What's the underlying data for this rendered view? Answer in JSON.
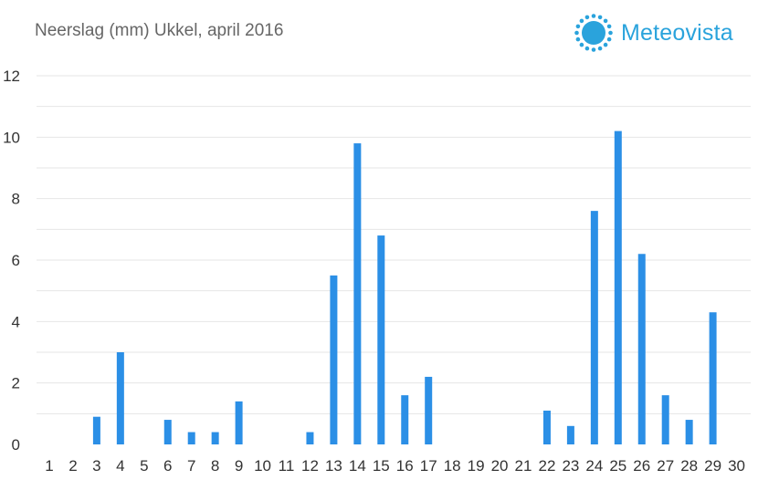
{
  "chart_data": {
    "type": "bar",
    "title": "Neerslag (mm) Ukkel, april 2016",
    "xlabel": "",
    "ylabel": "",
    "ylim": [
      0,
      12
    ],
    "yticks": [
      0,
      2,
      4,
      6,
      8,
      10,
      12
    ],
    "grid": true,
    "categories": [
      "1",
      "2",
      "3",
      "4",
      "5",
      "6",
      "7",
      "8",
      "9",
      "10",
      "11",
      "12",
      "13",
      "14",
      "15",
      "16",
      "17",
      "18",
      "19",
      "20",
      "21",
      "22",
      "23",
      "24",
      "25",
      "26",
      "27",
      "28",
      "29",
      "30"
    ],
    "values": [
      0,
      0,
      0.9,
      3.0,
      0,
      0.8,
      0.4,
      0.4,
      1.4,
      0,
      0,
      0.4,
      5.5,
      9.8,
      6.8,
      1.6,
      2.2,
      0,
      0,
      0,
      0,
      1.1,
      0.6,
      7.6,
      10.2,
      6.2,
      1.6,
      0.8,
      4.3,
      0
    ],
    "bar_color": "#2b8fe6",
    "grid_color": "#e6e6e6"
  },
  "brand": {
    "name": "Meteovista",
    "color": "#2aa3dc",
    "icon": "sun-icon"
  }
}
